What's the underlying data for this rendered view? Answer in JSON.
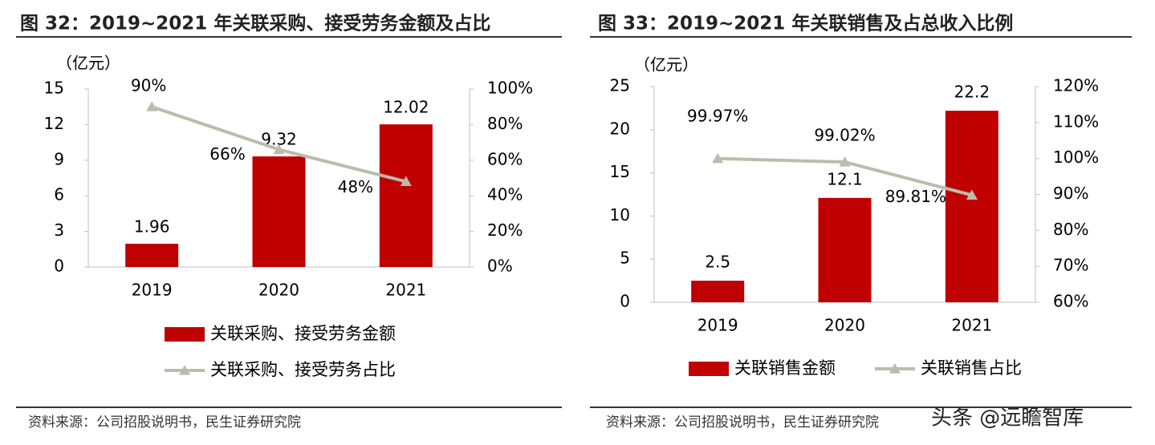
{
  "chart_data": [
    {
      "type": "bar",
      "title": "图 32：2019~2021 年关联采购、接受劳务金额及占比",
      "unit_label": "（亿元）",
      "categories": [
        "2019",
        "2020",
        "2021"
      ],
      "series": [
        {
          "name": "关联采购、接受劳务金额",
          "type": "bar",
          "color": "#c00000",
          "values": [
            1.96,
            9.32,
            12.02
          ]
        },
        {
          "name": "关联采购、接受劳务占比",
          "type": "line",
          "axis": "y2",
          "color": "#bcbcad",
          "values": [
            90,
            66,
            48
          ],
          "value_labels": [
            "90%",
            "66%",
            "48%"
          ]
        }
      ],
      "ylim": [
        0,
        15
      ],
      "yticks": [
        0,
        3,
        6,
        9,
        12,
        15
      ],
      "y2lim": [
        0,
        100
      ],
      "y2ticks": [
        {
          "value": 0,
          "label": "0%"
        },
        {
          "value": 20,
          "label": "20%"
        },
        {
          "value": 40,
          "label": "40%"
        },
        {
          "value": 60,
          "label": "60%"
        },
        {
          "value": 80,
          "label": "80%"
        },
        {
          "value": 100,
          "label": "100%"
        }
      ],
      "legend": "bottom",
      "grid": false,
      "source": "资料来源：公司招股说明书，民生证券研究院"
    },
    {
      "type": "bar",
      "title": "图 33：2019~2021 年关联销售及占总收入比例",
      "unit_label": "（亿元）",
      "categories": [
        "2019",
        "2020",
        "2021"
      ],
      "series": [
        {
          "name": "关联销售金额",
          "type": "bar",
          "color": "#c00000",
          "values": [
            2.5,
            12.1,
            22.2
          ]
        },
        {
          "name": "关联销售占比",
          "type": "line",
          "axis": "y2",
          "color": "#bcbcad",
          "values": [
            99.97,
            99.02,
            89.81
          ],
          "value_labels": [
            "99.97%",
            "99.02%",
            "89.81%"
          ]
        }
      ],
      "ylim": [
        0,
        25
      ],
      "yticks": [
        0,
        5,
        10,
        15,
        20,
        25
      ],
      "y2lim": [
        60,
        120
      ],
      "y2ticks": [
        {
          "value": 60,
          "label": "60%"
        },
        {
          "value": 70,
          "label": "70%"
        },
        {
          "value": 80,
          "label": "80%"
        },
        {
          "value": 90,
          "label": "90%"
        },
        {
          "value": 100,
          "label": "100%"
        },
        {
          "value": 110,
          "label": "110%"
        },
        {
          "value": 120,
          "label": "120%"
        }
      ],
      "legend": "bottom",
      "grid": false,
      "source": "资料来源：公司招股说明书，民生证券研究院"
    }
  ],
  "watermark": "头条 @远瞻智库"
}
